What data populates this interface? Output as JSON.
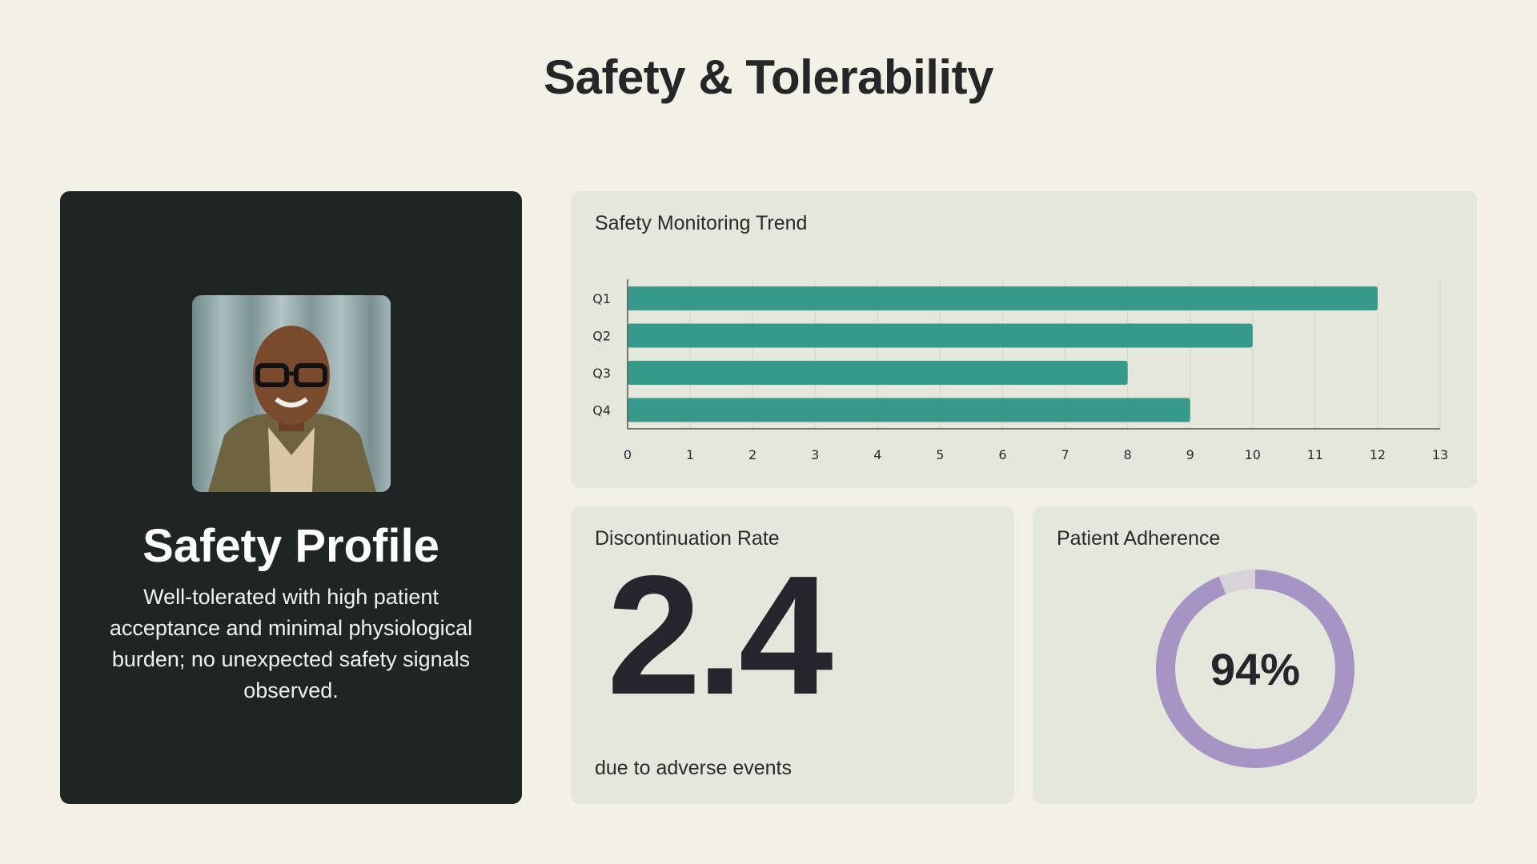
{
  "page": {
    "title": "Safety & Tolerability"
  },
  "profile": {
    "title": "Safety Profile",
    "description": "Well-tolerated with high patient acceptance and minimal physiological burden; no unexpected safety signals observed."
  },
  "chart_data": {
    "type": "bar",
    "orientation": "horizontal",
    "title": "Safety Monitoring Trend",
    "categories": [
      "Q1",
      "Q2",
      "Q3",
      "Q4"
    ],
    "values": [
      12,
      10,
      8,
      9
    ],
    "xlim": [
      0,
      13
    ],
    "xticks": [
      0,
      1,
      2,
      3,
      4,
      5,
      6,
      7,
      8,
      9,
      10,
      11,
      12,
      13
    ],
    "grid": true,
    "color": "#359a89"
  },
  "discontinuation": {
    "title": "Discontinuation Rate",
    "value": "2.4",
    "caption": "due to adverse events"
  },
  "adherence": {
    "title": "Patient Adherence",
    "value_label": "94%",
    "fraction": 0.94,
    "color": "#a694c4",
    "track_color": "#d5d3d8"
  }
}
